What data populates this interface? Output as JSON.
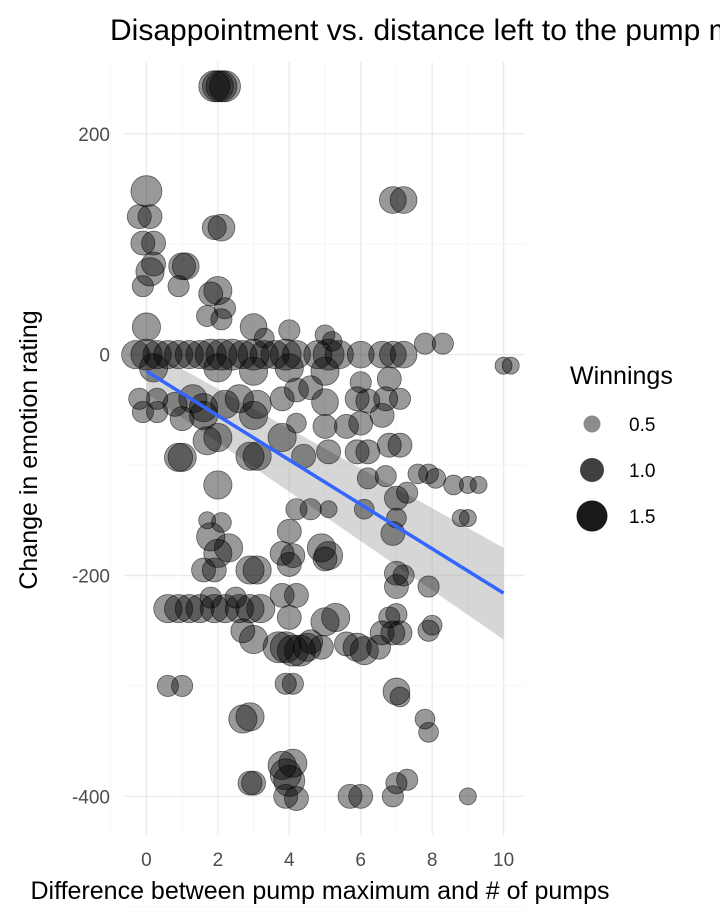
{
  "chart_data": {
    "type": "scatter",
    "title": "Disappointment vs. distance left to the pump maximum",
    "xlabel": "Difference between pump maximum and # of pumps",
    "ylabel": "Change in emotion rating",
    "xlim": [
      -0.6,
      10.6
    ],
    "ylim": [
      -435,
      265
    ],
    "x_ticks": [
      0,
      2,
      4,
      6,
      8,
      10
    ],
    "y_ticks": [
      -400,
      -200,
      0,
      200
    ],
    "grid": true,
    "legend": {
      "title": "Winnings",
      "position": "right",
      "entries": [
        {
          "label": "0.5",
          "value": 0.5
        },
        {
          "label": "1.0",
          "value": 1.0
        },
        {
          "label": "1.5",
          "value": 1.5
        }
      ]
    },
    "point_color": "#000000",
    "point_opacity": 0.4,
    "smooth": {
      "method": "linear",
      "color": "#3366ff",
      "band_color": "#999999",
      "x_range": [
        0,
        10
      ],
      "fit": [
        -15,
        -216
      ],
      "ci_low": [
        -35,
        -258
      ],
      "ci_high": [
        5,
        -175
      ]
    },
    "points": [
      {
        "x": 2.0,
        "y": 243,
        "w": 1.5
      },
      {
        "x": 2.1,
        "y": 243,
        "w": 1.5
      },
      {
        "x": 2.2,
        "y": 243,
        "w": 1.5
      },
      {
        "x": 1.9,
        "y": 243,
        "w": 1.5
      },
      {
        "x": 0.0,
        "y": 148,
        "w": 1.5
      },
      {
        "x": 6.9,
        "y": 140,
        "w": 1.2
      },
      {
        "x": 7.2,
        "y": 140,
        "w": 1.2
      },
      {
        "x": -0.2,
        "y": 125,
        "w": 1.0
      },
      {
        "x": 0.1,
        "y": 125,
        "w": 1.0
      },
      {
        "x": 1.9,
        "y": 115,
        "w": 1.0
      },
      {
        "x": 2.1,
        "y": 115,
        "w": 1.2
      },
      {
        "x": -0.1,
        "y": 101,
        "w": 1.0
      },
      {
        "x": 0.2,
        "y": 101,
        "w": 1.0
      },
      {
        "x": 1.0,
        "y": 80,
        "w": 1.2
      },
      {
        "x": 1.1,
        "y": 80,
        "w": 1.2
      },
      {
        "x": 0.1,
        "y": 75,
        "w": 1.3
      },
      {
        "x": 0.2,
        "y": 82,
        "w": 1.0
      },
      {
        "x": -0.1,
        "y": 62,
        "w": 0.8
      },
      {
        "x": 0.9,
        "y": 62,
        "w": 0.8
      },
      {
        "x": 2.0,
        "y": 58,
        "w": 1.3
      },
      {
        "x": 1.8,
        "y": 55,
        "w": 1.0
      },
      {
        "x": 2.2,
        "y": 42,
        "w": 0.8
      },
      {
        "x": 1.7,
        "y": 35,
        "w": 0.8
      },
      {
        "x": 2.1,
        "y": 32,
        "w": 0.8
      },
      {
        "x": 3.0,
        "y": 25,
        "w": 1.2
      },
      {
        "x": 3.3,
        "y": 15,
        "w": 0.7
      },
      {
        "x": 0.0,
        "y": 25,
        "w": 1.3
      },
      {
        "x": 4.0,
        "y": 22,
        "w": 0.8
      },
      {
        "x": 5.0,
        "y": 18,
        "w": 0.7
      },
      {
        "x": 5.2,
        "y": 12,
        "w": 0.7
      },
      {
        "x": 7.8,
        "y": 10,
        "w": 0.8
      },
      {
        "x": 8.3,
        "y": 10,
        "w": 0.8
      },
      {
        "x": 10.0,
        "y": -10,
        "w": 0.5
      },
      {
        "x": 10.2,
        "y": -10,
        "w": 0.5
      },
      {
        "x": -0.3,
        "y": 0,
        "w": 1.3
      },
      {
        "x": 0.0,
        "y": 0,
        "w": 1.5
      },
      {
        "x": 0.3,
        "y": 0,
        "w": 1.3
      },
      {
        "x": 0.6,
        "y": 0,
        "w": 1.3
      },
      {
        "x": 0.9,
        "y": 0,
        "w": 1.3
      },
      {
        "x": 1.2,
        "y": 0,
        "w": 1.3
      },
      {
        "x": 1.5,
        "y": 0,
        "w": 1.3
      },
      {
        "x": 1.8,
        "y": 0,
        "w": 1.5
      },
      {
        "x": 2.1,
        "y": 0,
        "w": 1.5
      },
      {
        "x": 2.4,
        "y": 0,
        "w": 1.5
      },
      {
        "x": 2.7,
        "y": 0,
        "w": 1.3
      },
      {
        "x": 3.0,
        "y": 0,
        "w": 1.5
      },
      {
        "x": 3.3,
        "y": 0,
        "w": 1.3
      },
      {
        "x": 3.6,
        "y": 0,
        "w": 1.3
      },
      {
        "x": 3.9,
        "y": 0,
        "w": 1.5
      },
      {
        "x": 4.2,
        "y": 0,
        "w": 1.3
      },
      {
        "x": 4.8,
        "y": 0,
        "w": 1.3
      },
      {
        "x": 5.1,
        "y": 0,
        "w": 1.5
      },
      {
        "x": 5.4,
        "y": 0,
        "w": 1.3
      },
      {
        "x": 6.0,
        "y": 0,
        "w": 1.2
      },
      {
        "x": 6.6,
        "y": 0,
        "w": 1.2
      },
      {
        "x": 6.9,
        "y": 0,
        "w": 1.2
      },
      {
        "x": 7.2,
        "y": 0,
        "w": 1.2
      },
      {
        "x": 0.2,
        "y": -12,
        "w": 1.3
      },
      {
        "x": 2.0,
        "y": -12,
        "w": 1.3
      },
      {
        "x": 3.0,
        "y": -15,
        "w": 1.3
      },
      {
        "x": 4.0,
        "y": -12,
        "w": 1.3
      },
      {
        "x": 5.0,
        "y": -15,
        "w": 1.3
      },
      {
        "x": 6.0,
        "y": -25,
        "w": 0.8
      },
      {
        "x": 6.8,
        "y": -22,
        "w": 1.0
      },
      {
        "x": -0.2,
        "y": -40,
        "w": 0.8
      },
      {
        "x": 0.3,
        "y": -40,
        "w": 0.8
      },
      {
        "x": 0.8,
        "y": -45,
        "w": 1.0
      },
      {
        "x": 1.3,
        "y": -40,
        "w": 1.3
      },
      {
        "x": 1.6,
        "y": -48,
        "w": 1.3
      },
      {
        "x": 2.2,
        "y": -45,
        "w": 1.3
      },
      {
        "x": 2.6,
        "y": -40,
        "w": 1.3
      },
      {
        "x": 3.1,
        "y": -45,
        "w": 1.3
      },
      {
        "x": 3.8,
        "y": -40,
        "w": 1.0
      },
      {
        "x": 4.2,
        "y": -32,
        "w": 1.0
      },
      {
        "x": 4.6,
        "y": -30,
        "w": 1.0
      },
      {
        "x": 5.0,
        "y": -43,
        "w": 1.2
      },
      {
        "x": 5.9,
        "y": -40,
        "w": 1.0
      },
      {
        "x": 6.2,
        "y": -42,
        "w": 1.0
      },
      {
        "x": 6.7,
        "y": -40,
        "w": 1.0
      },
      {
        "x": 7.1,
        "y": -40,
        "w": 0.8
      },
      {
        "x": -0.1,
        "y": -52,
        "w": 0.8
      },
      {
        "x": 0.3,
        "y": -52,
        "w": 0.8
      },
      {
        "x": 1.0,
        "y": -58,
        "w": 1.0
      },
      {
        "x": 1.6,
        "y": -55,
        "w": 1.3
      },
      {
        "x": 3.0,
        "y": -55,
        "w": 1.3
      },
      {
        "x": 4.2,
        "y": -62,
        "w": 0.7
      },
      {
        "x": 5.0,
        "y": -65,
        "w": 1.0
      },
      {
        "x": 5.6,
        "y": -65,
        "w": 1.0
      },
      {
        "x": 6.0,
        "y": -62,
        "w": 1.0
      },
      {
        "x": 6.6,
        "y": -55,
        "w": 1.0
      },
      {
        "x": 2.0,
        "y": -75,
        "w": 1.3
      },
      {
        "x": 1.7,
        "y": -78,
        "w": 1.3
      },
      {
        "x": 3.8,
        "y": -75,
        "w": 1.3
      },
      {
        "x": 5.9,
        "y": -88,
        "w": 1.0
      },
      {
        "x": 6.2,
        "y": -88,
        "w": 1.0
      },
      {
        "x": 6.8,
        "y": -82,
        "w": 1.0
      },
      {
        "x": 7.1,
        "y": -82,
        "w": 1.0
      },
      {
        "x": 0.9,
        "y": -93,
        "w": 1.3
      },
      {
        "x": 1.0,
        "y": -93,
        "w": 1.3
      },
      {
        "x": 2.9,
        "y": -92,
        "w": 1.3
      },
      {
        "x": 3.1,
        "y": -92,
        "w": 1.3
      },
      {
        "x": 4.4,
        "y": -92,
        "w": 1.0
      },
      {
        "x": 5.1,
        "y": -88,
        "w": 1.0
      },
      {
        "x": 7.6,
        "y": -108,
        "w": 0.7
      },
      {
        "x": 7.9,
        "y": -108,
        "w": 0.7
      },
      {
        "x": 8.1,
        "y": -112,
        "w": 0.7
      },
      {
        "x": 8.6,
        "y": -118,
        "w": 0.7
      },
      {
        "x": 9.0,
        "y": -118,
        "w": 0.5
      },
      {
        "x": 9.3,
        "y": -118,
        "w": 0.5
      },
      {
        "x": 2.0,
        "y": -118,
        "w": 1.3
      },
      {
        "x": 6.2,
        "y": -112,
        "w": 0.8
      },
      {
        "x": 6.7,
        "y": -110,
        "w": 0.8
      },
      {
        "x": 7.3,
        "y": -125,
        "w": 0.8
      },
      {
        "x": 7.0,
        "y": -130,
        "w": 1.0
      },
      {
        "x": 4.2,
        "y": -140,
        "w": 0.8
      },
      {
        "x": 4.6,
        "y": -140,
        "w": 0.8
      },
      {
        "x": 5.1,
        "y": -140,
        "w": 0.5
      },
      {
        "x": 6.1,
        "y": -140,
        "w": 0.7
      },
      {
        "x": 7.0,
        "y": -148,
        "w": 0.7
      },
      {
        "x": 8.8,
        "y": -148,
        "w": 0.5
      },
      {
        "x": 9.0,
        "y": -148,
        "w": 0.5
      },
      {
        "x": 1.7,
        "y": -150,
        "w": 0.5
      },
      {
        "x": 2.1,
        "y": -152,
        "w": 0.7
      },
      {
        "x": 4.0,
        "y": -160,
        "w": 1.0
      },
      {
        "x": 6.9,
        "y": -162,
        "w": 1.0
      },
      {
        "x": 1.8,
        "y": -165,
        "w": 1.3
      },
      {
        "x": 2.3,
        "y": -175,
        "w": 1.3
      },
      {
        "x": 2.0,
        "y": -180,
        "w": 1.3
      },
      {
        "x": 4.9,
        "y": -175,
        "w": 1.3
      },
      {
        "x": 5.1,
        "y": -182,
        "w": 1.3
      },
      {
        "x": 3.8,
        "y": -180,
        "w": 1.0
      },
      {
        "x": 4.1,
        "y": -182,
        "w": 1.0
      },
      {
        "x": 1.9,
        "y": -195,
        "w": 1.0
      },
      {
        "x": 1.6,
        "y": -195,
        "w": 1.0
      },
      {
        "x": 2.9,
        "y": -195,
        "w": 1.3
      },
      {
        "x": 3.1,
        "y": -195,
        "w": 1.3
      },
      {
        "x": 4.0,
        "y": -190,
        "w": 1.0
      },
      {
        "x": 5.0,
        "y": -185,
        "w": 1.0
      },
      {
        "x": 7.0,
        "y": -198,
        "w": 1.0
      },
      {
        "x": 7.2,
        "y": -200,
        "w": 0.8
      },
      {
        "x": 7.9,
        "y": -210,
        "w": 0.8
      },
      {
        "x": 7.0,
        "y": -210,
        "w": 1.0
      },
      {
        "x": 3.8,
        "y": -218,
        "w": 1.0
      },
      {
        "x": 4.2,
        "y": -218,
        "w": 1.0
      },
      {
        "x": 1.8,
        "y": -220,
        "w": 0.8
      },
      {
        "x": 2.5,
        "y": -220,
        "w": 0.8
      },
      {
        "x": 0.6,
        "y": -230,
        "w": 1.3
      },
      {
        "x": 0.9,
        "y": -230,
        "w": 1.3
      },
      {
        "x": 1.2,
        "y": -230,
        "w": 1.3
      },
      {
        "x": 1.5,
        "y": -230,
        "w": 1.3
      },
      {
        "x": 1.9,
        "y": -230,
        "w": 1.3
      },
      {
        "x": 2.2,
        "y": -230,
        "w": 1.3
      },
      {
        "x": 2.6,
        "y": -230,
        "w": 1.3
      },
      {
        "x": 2.9,
        "y": -230,
        "w": 1.3
      },
      {
        "x": 3.2,
        "y": -230,
        "w": 1.3
      },
      {
        "x": 6.8,
        "y": -238,
        "w": 0.8
      },
      {
        "x": 7.0,
        "y": -235,
        "w": 0.8
      },
      {
        "x": 8.0,
        "y": -245,
        "w": 0.7
      },
      {
        "x": 4.0,
        "y": -238,
        "w": 1.0
      },
      {
        "x": 5.0,
        "y": -242,
        "w": 1.3
      },
      {
        "x": 5.3,
        "y": -238,
        "w": 1.3
      },
      {
        "x": 2.7,
        "y": -250,
        "w": 1.0
      },
      {
        "x": 3.0,
        "y": -258,
        "w": 1.3
      },
      {
        "x": 6.6,
        "y": -252,
        "w": 1.0
      },
      {
        "x": 6.9,
        "y": -252,
        "w": 1.0
      },
      {
        "x": 7.1,
        "y": -252,
        "w": 1.0
      },
      {
        "x": 7.9,
        "y": -250,
        "w": 0.8
      },
      {
        "x": 5.6,
        "y": -262,
        "w": 1.0
      },
      {
        "x": 4.6,
        "y": -260,
        "w": 1.0
      },
      {
        "x": 3.7,
        "y": -265,
        "w": 1.5
      },
      {
        "x": 3.9,
        "y": -265,
        "w": 1.5
      },
      {
        "x": 4.1,
        "y": -268,
        "w": 1.5
      },
      {
        "x": 4.3,
        "y": -268,
        "w": 1.5
      },
      {
        "x": 4.5,
        "y": -265,
        "w": 1.3
      },
      {
        "x": 4.9,
        "y": -265,
        "w": 1.0
      },
      {
        "x": 5.9,
        "y": -265,
        "w": 1.3
      },
      {
        "x": 6.1,
        "y": -268,
        "w": 1.3
      },
      {
        "x": 6.5,
        "y": -265,
        "w": 1.0
      },
      {
        "x": 3.9,
        "y": -298,
        "w": 0.8
      },
      {
        "x": 4.1,
        "y": -298,
        "w": 0.8
      },
      {
        "x": 0.6,
        "y": -300,
        "w": 0.8
      },
      {
        "x": 1.0,
        "y": -300,
        "w": 0.8
      },
      {
        "x": 7.0,
        "y": -305,
        "w": 1.2
      },
      {
        "x": 7.1,
        "y": -310,
        "w": 0.7
      },
      {
        "x": 2.7,
        "y": -330,
        "w": 1.3
      },
      {
        "x": 2.9,
        "y": -328,
        "w": 1.3
      },
      {
        "x": 7.8,
        "y": -330,
        "w": 0.7
      },
      {
        "x": 7.9,
        "y": -342,
        "w": 0.7
      },
      {
        "x": 3.8,
        "y": -372,
        "w": 1.3
      },
      {
        "x": 4.1,
        "y": -370,
        "w": 1.3
      },
      {
        "x": 3.9,
        "y": -380,
        "w": 1.5
      },
      {
        "x": 4.0,
        "y": -386,
        "w": 1.5
      },
      {
        "x": 2.9,
        "y": -388,
        "w": 1.0
      },
      {
        "x": 3.0,
        "y": -388,
        "w": 1.0
      },
      {
        "x": 7.0,
        "y": -388,
        "w": 0.8
      },
      {
        "x": 7.3,
        "y": -385,
        "w": 0.8
      },
      {
        "x": 3.9,
        "y": -400,
        "w": 1.0
      },
      {
        "x": 4.2,
        "y": -402,
        "w": 1.0
      },
      {
        "x": 5.7,
        "y": -400,
        "w": 1.0
      },
      {
        "x": 6.0,
        "y": -400,
        "w": 1.0
      },
      {
        "x": 6.9,
        "y": -400,
        "w": 0.8
      },
      {
        "x": 9.0,
        "y": -400,
        "w": 0.5
      }
    ]
  }
}
